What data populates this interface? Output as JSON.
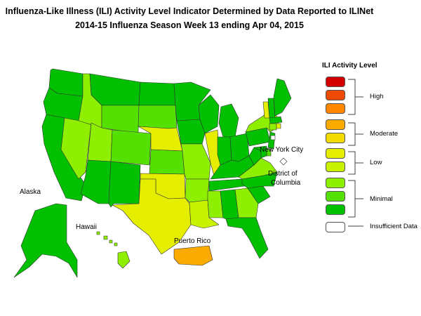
{
  "title_line1": "Influenza-Like Illness (ILI) Activity Level Indicator Determined by Data Reported to ILINet",
  "title_line2": "2014-15  Influenza Season Week  13 ending Apr 04, 2015",
  "legend": {
    "title": "ILI Activity Level",
    "levels": [
      {
        "level": 10,
        "color": "#d40000"
      },
      {
        "level": 9,
        "color": "#ee4a00"
      },
      {
        "level": 8,
        "color": "#ff8800"
      },
      {
        "level": 7,
        "color": "#fbaa00"
      },
      {
        "level": 6,
        "color": "#f2dc00"
      },
      {
        "level": 5,
        "color": "#e6ee00"
      },
      {
        "level": 4,
        "color": "#c8f200"
      },
      {
        "level": 3,
        "color": "#8ef000"
      },
      {
        "level": 2,
        "color": "#54e000"
      },
      {
        "level": 1,
        "color": "#00c000"
      },
      {
        "level": 0,
        "color": "#ffffff"
      }
    ],
    "groups": {
      "high": "High",
      "moderate": "Moderate",
      "low": "Low",
      "minimal": "Minimal",
      "insufficient": "Insufficient Data"
    }
  },
  "map_labels": {
    "alaska": "Alaska",
    "hawaii": "Hawaii",
    "puerto_rico": "Puerto Rico",
    "nyc": "New York City",
    "dc_line1": "District of",
    "dc_line2": "Columbia"
  },
  "region_levels": {
    "WA": 1,
    "OR": 1,
    "CA": 1,
    "NV": 3,
    "ID": 3,
    "MT": 1,
    "WY": 2,
    "UT": 3,
    "CO": 2,
    "AZ": 1,
    "NM": 1,
    "ND": 1,
    "SD": 2,
    "NE": 5,
    "KS": 2,
    "OK": 5,
    "TX": 5,
    "MN": 1,
    "IA": 1,
    "MO": 3,
    "AR": 3,
    "LA": 4,
    "WI": 1,
    "IL": 5,
    "MI": 1,
    "IN": 1,
    "OH": 1,
    "KY": 1,
    "TN": 1,
    "MS": 3,
    "AL": 1,
    "GA": 3,
    "FL": 1,
    "SC": 1,
    "NC": 1,
    "VA": 3,
    "WV": 1,
    "PA": 1,
    "NY": 3,
    "VT": 5,
    "NH": 1,
    "ME": 1,
    "MA": 1,
    "CT": 3,
    "RI": 5,
    "NJ": 1,
    "DE": 2,
    "MD": 1,
    "AK": 1,
    "HI": 3,
    "PR": 7,
    "NYC": 0,
    "DC": 0
  }
}
